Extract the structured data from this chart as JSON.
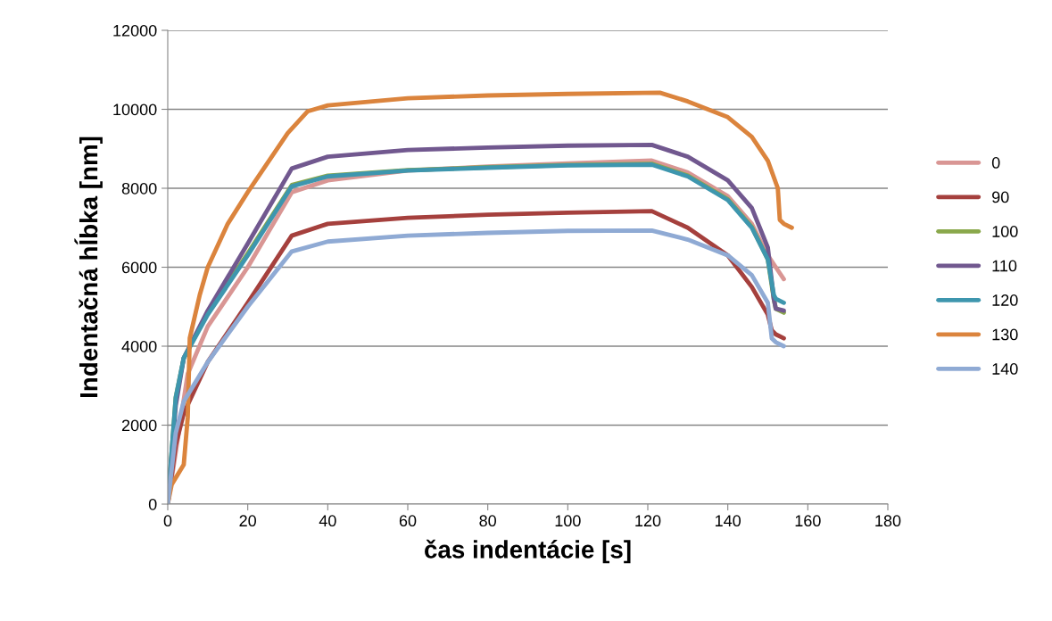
{
  "chart_data": {
    "type": "line",
    "xlabel": "čas indentácie [s]",
    "ylabel": "Indentačná hĺbka [nm]",
    "xlim": [
      0,
      180
    ],
    "xticks": [
      0,
      20,
      40,
      60,
      80,
      100,
      120,
      140,
      160,
      180
    ],
    "ylim": [
      0,
      12000
    ],
    "yticks": [
      0,
      2000,
      4000,
      6000,
      8000,
      10000,
      12000
    ],
    "grid": "y",
    "legend": "right",
    "marker": "none",
    "line_style": "solid",
    "series": [
      {
        "name": "0",
        "color": "#d99694",
        "x": [
          0,
          5,
          10,
          20,
          31,
          40,
          60,
          80,
          100,
          121,
          130,
          140,
          146,
          150,
          152,
          154
        ],
        "values": [
          0,
          3300,
          4500,
          6000,
          7900,
          8200,
          8450,
          8550,
          8630,
          8700,
          8400,
          7800,
          7100,
          6300,
          6000,
          5700
        ]
      },
      {
        "name": "90",
        "color": "#a5403d",
        "x": [
          0,
          2,
          4,
          10,
          20,
          31,
          40,
          60,
          80,
          100,
          121,
          130,
          140,
          146,
          150,
          151,
          152,
          154
        ],
        "values": [
          0,
          1500,
          2300,
          3600,
          5100,
          6800,
          7100,
          7250,
          7330,
          7380,
          7420,
          7000,
          6300,
          5500,
          4800,
          4400,
          4300,
          4200
        ]
      },
      {
        "name": "100",
        "color": "#8aa84b",
        "x": [
          0,
          2,
          4,
          10,
          20,
          31,
          40,
          60,
          80,
          100,
          121,
          130,
          140,
          146,
          150,
          151.5,
          152,
          154
        ],
        "values": [
          0,
          2700,
          3700,
          4850,
          6350,
          8080,
          8320,
          8460,
          8530,
          8590,
          8620,
          8320,
          7720,
          7020,
          6200,
          5200,
          4950,
          4850
        ]
      },
      {
        "name": "110",
        "color": "#71588f",
        "x": [
          0,
          2,
          4,
          10,
          20,
          31,
          40,
          60,
          80,
          100,
          121,
          130,
          140,
          146,
          150,
          151.5,
          152,
          154
        ],
        "values": [
          0,
          2500,
          3700,
          4900,
          6600,
          8500,
          8800,
          8970,
          9030,
          9080,
          9100,
          8800,
          8200,
          7500,
          6500,
          5200,
          4950,
          4900
        ]
      },
      {
        "name": "120",
        "color": "#3e96ae",
        "x": [
          0,
          2,
          4,
          10,
          20,
          31,
          40,
          60,
          80,
          100,
          121,
          130,
          140,
          146,
          150,
          151.5,
          152,
          154
        ],
        "values": [
          0,
          2700,
          3700,
          4800,
          6300,
          8050,
          8300,
          8450,
          8520,
          8580,
          8600,
          8300,
          7700,
          7000,
          6200,
          5300,
          5200,
          5100
        ]
      },
      {
        "name": "130",
        "color": "#db843d",
        "x": [
          0,
          1,
          4,
          5,
          5.5,
          8,
          10,
          15,
          20,
          30,
          35,
          40,
          60,
          80,
          100,
          123,
          130,
          140,
          146,
          150,
          152.5,
          153,
          154,
          156
        ],
        "values": [
          0,
          500,
          1000,
          2200,
          4200,
          5300,
          6000,
          7100,
          7900,
          9400,
          9950,
          10100,
          10280,
          10350,
          10390,
          10420,
          10200,
          9800,
          9300,
          8700,
          8000,
          7200,
          7100,
          7000
        ]
      },
      {
        "name": "140",
        "color": "#8faad4",
        "x": [
          0,
          2,
          4,
          10,
          20,
          31,
          40,
          60,
          80,
          100,
          121,
          130,
          140,
          146,
          150,
          151,
          152,
          154
        ],
        "values": [
          0,
          1800,
          2600,
          3600,
          5000,
          6400,
          6650,
          6800,
          6870,
          6920,
          6930,
          6700,
          6300,
          5800,
          5100,
          4200,
          4100,
          4000
        ]
      }
    ]
  }
}
